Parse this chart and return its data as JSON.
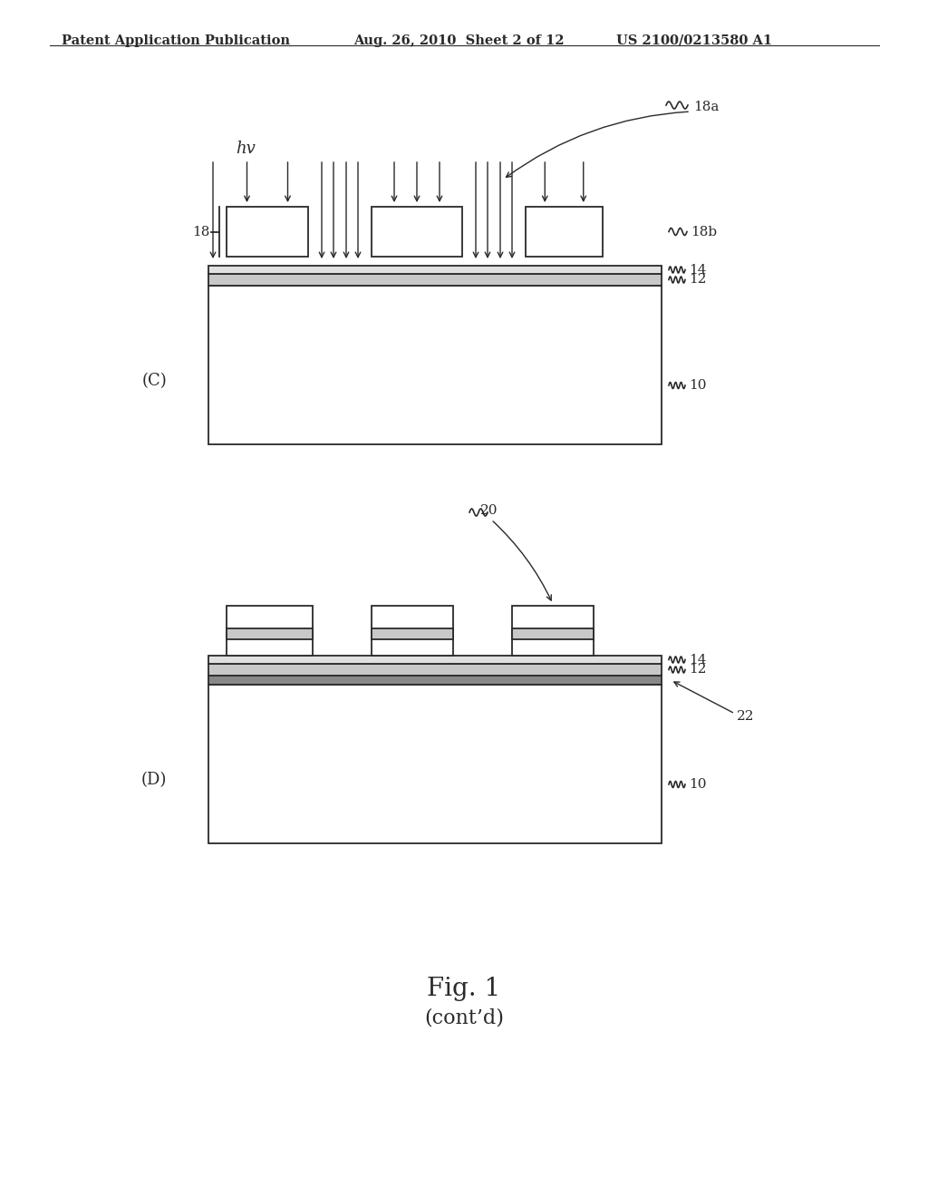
{
  "bg_color": "#ffffff",
  "line_color": "#2a2a2a",
  "header_text_left": "Patent Application Publication",
  "header_text_mid": "Aug. 26, 2010  Sheet 2 of 12",
  "header_text_right": "US 2100/0213580 A1",
  "fig_caption": "Fig. 1",
  "fig_subcaption": "(cont’d)",
  "panel_C_label": "(C)",
  "panel_D_label": "(D)",
  "label_18": "18",
  "label_18a": "18a",
  "label_18b": "18b",
  "label_hv": "hv",
  "label_10": "10",
  "label_12": "12",
  "label_14": "14",
  "label_20": "20",
  "label_22": "22"
}
